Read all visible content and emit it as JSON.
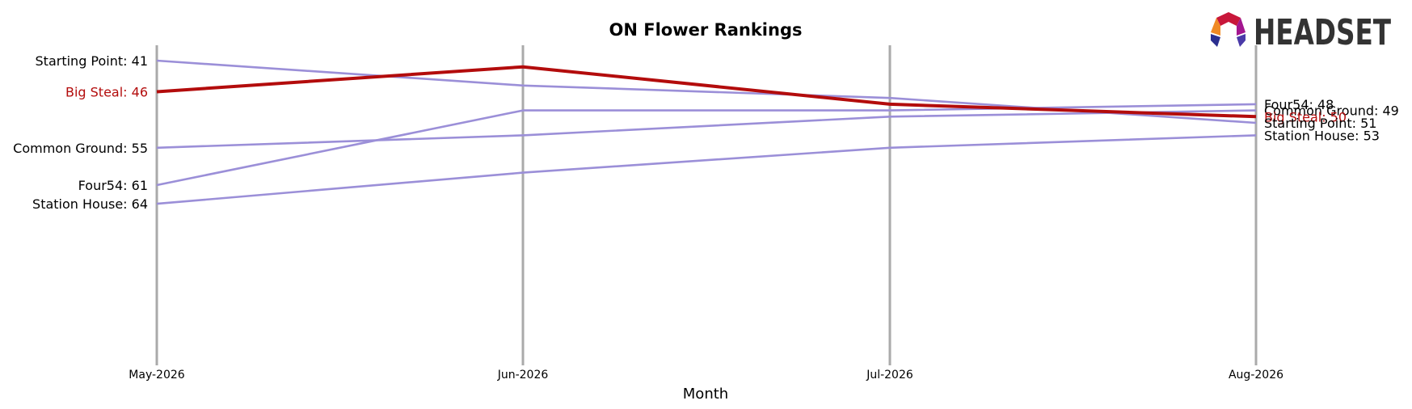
{
  "chart_data": {
    "type": "line",
    "title": "ON Flower Rankings",
    "xlabel": "Month",
    "ylabel": "",
    "categories": [
      "May-2026",
      "Jun-2026",
      "Jul-2026",
      "Aug-2026"
    ],
    "ylim": [
      40,
      65
    ],
    "y_inverted": true,
    "grid": "vertical",
    "series": [
      {
        "name": "Starting Point",
        "values": [
          41,
          45,
          47,
          51
        ],
        "color": "#9b8fd8",
        "highlight": false
      },
      {
        "name": "Common Ground",
        "values": [
          55,
          53,
          50,
          49
        ],
        "color": "#9b8fd8",
        "highlight": false
      },
      {
        "name": "Four54",
        "values": [
          61,
          49,
          49,
          48
        ],
        "color": "#9b8fd8",
        "highlight": false
      },
      {
        "name": "Station House",
        "values": [
          64,
          59,
          55,
          53
        ],
        "color": "#9b8fd8",
        "highlight": false
      },
      {
        "name": "Big Steal",
        "values": [
          46,
          42,
          48,
          50
        ],
        "color": "#b30c0c",
        "highlight": true
      }
    ],
    "left_labels": [
      {
        "text": "Starting Point: 41",
        "value": 41,
        "highlight": false
      },
      {
        "text": "Big Steal: 46",
        "value": 46,
        "highlight": true
      },
      {
        "text": "Common Ground: 55",
        "value": 55,
        "highlight": false
      },
      {
        "text": "Four54: 61",
        "value": 61,
        "highlight": false
      },
      {
        "text": "Station House: 64",
        "value": 64,
        "highlight": false
      }
    ],
    "right_labels": [
      {
        "text": "Four54: 48",
        "value": 48,
        "highlight": false
      },
      {
        "text": "Common Ground: 49",
        "value": 49,
        "highlight": false
      },
      {
        "text": "Big Steal: 50",
        "value": 50,
        "highlight": true
      },
      {
        "text": "Starting Point: 51",
        "value": 51,
        "highlight": false
      },
      {
        "text": "Station House: 53",
        "value": 53,
        "highlight": false
      }
    ]
  },
  "logo": {
    "text": "HEADSET"
  },
  "colors": {
    "highlight": "#b30c0c",
    "series": "#9b8fd8",
    "gridline": "#aaaaaa",
    "text": "#000000"
  }
}
